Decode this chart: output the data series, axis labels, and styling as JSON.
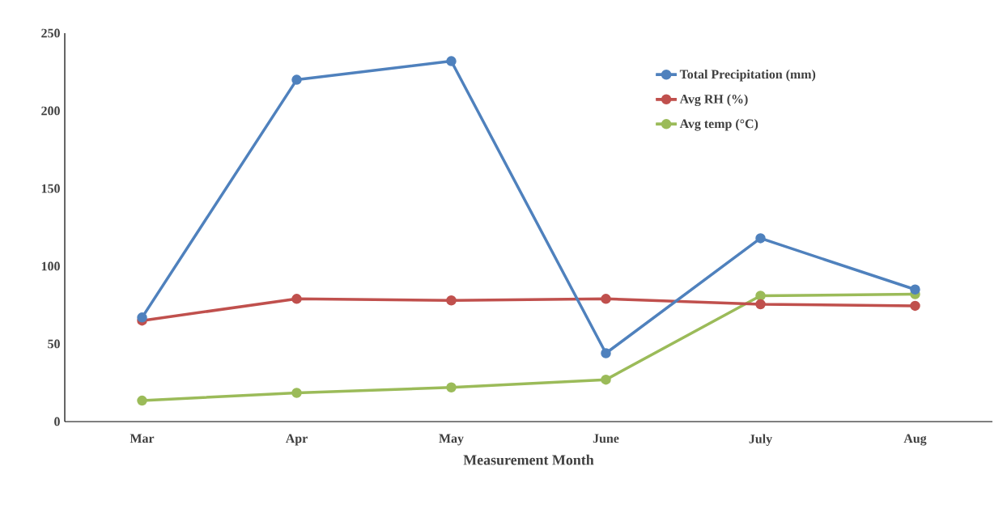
{
  "chart_data": {
    "type": "line",
    "xlabel": "Measurement Month",
    "categories": [
      "Mar",
      "Apr",
      "May",
      "June",
      "July",
      "Aug"
    ],
    "series": [
      {
        "name": "Total Precipitation (mm)",
        "color": "#4f81bd",
        "values": [
          67,
          220,
          232,
          44,
          118,
          85
        ]
      },
      {
        "name": "Avg RH (%)",
        "color": "#c0504d",
        "values": [
          65,
          79,
          78,
          79,
          75.5,
          74.5
        ]
      },
      {
        "name": "Avg temp (°C)",
        "color": "#9bbb59",
        "values": [
          13.5,
          18.5,
          22,
          27,
          81,
          82
        ]
      }
    ],
    "ylim": [
      0,
      250
    ],
    "yticks": [
      0,
      50,
      100,
      150,
      200,
      250
    ],
    "grid": false,
    "legend": "top right",
    "marker": "circle",
    "line_style": "solid"
  }
}
